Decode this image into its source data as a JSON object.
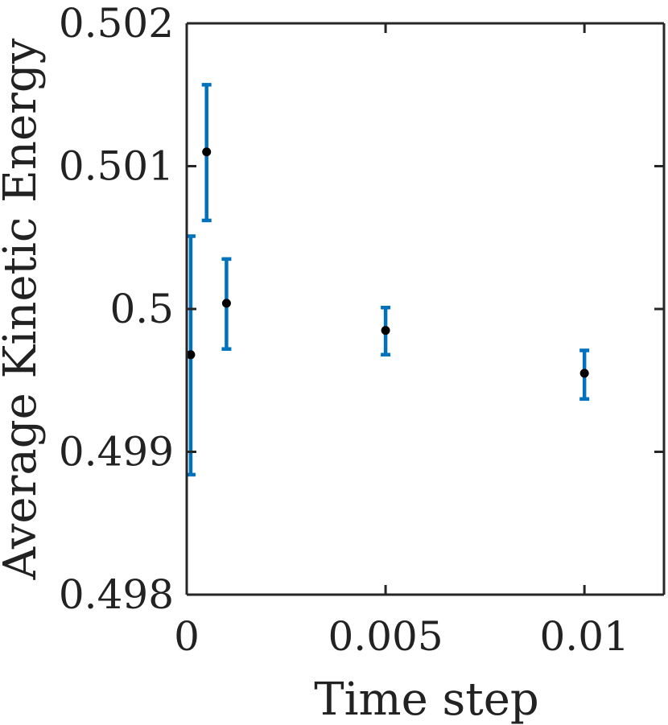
{
  "chart_data": {
    "type": "scatter",
    "xlabel": "Time step",
    "ylabel": "Average Kinetic Energy",
    "xlim": [
      0,
      0.012
    ],
    "ylim": [
      0.498,
      0.502
    ],
    "x_ticks": [
      0,
      0.005,
      0.01
    ],
    "x_tick_labels": [
      "0",
      "0.005",
      "0.01"
    ],
    "y_ticks": [
      0.498,
      0.499,
      0.5,
      0.501,
      0.502
    ],
    "y_tick_labels": [
      "0.498",
      "0.499",
      "0.5",
      "0.501",
      "0.502"
    ],
    "grid": false,
    "legend": "none",
    "colors": {
      "errorbar": "#0072BD",
      "marker": "#000000",
      "axes": "#262626"
    },
    "series": [
      {
        "points": [
          {
            "x": 0.0001,
            "y": 0.49968,
            "err_low": 0.49884,
            "err_high": 0.50051
          },
          {
            "x": 0.0005,
            "y": 0.5011,
            "err_low": 0.50062,
            "err_high": 0.50157
          },
          {
            "x": 0.001,
            "y": 0.50004,
            "err_low": 0.49972,
            "err_high": 0.50035
          },
          {
            "x": 0.005,
            "y": 0.49985,
            "err_low": 0.49968,
            "err_high": 0.50001
          },
          {
            "x": 0.01,
            "y": 0.49955,
            "err_low": 0.49937,
            "err_high": 0.49971
          }
        ]
      }
    ]
  }
}
